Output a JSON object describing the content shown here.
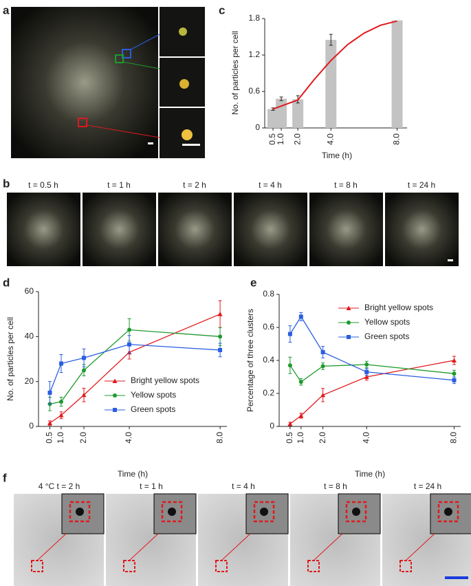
{
  "panels": {
    "labels": [
      "a",
      "b",
      "c",
      "d",
      "e",
      "f"
    ],
    "b_captions": [
      "t = 0.5 h",
      "t = 1 h",
      "t = 2 h",
      "t = 4 h",
      "t = 8 h",
      "t = 24 h"
    ],
    "f_captions": [
      "4 °C  t = 2 h",
      "t = 1 h",
      "t = 4 h",
      "t = 8 h",
      "t = 24 h"
    ]
  },
  "chart_data": [
    {
      "type": "bar",
      "x_label": "Time (h)",
      "y_label": "No. of particles per cell",
      "x": [
        0.5,
        1,
        2,
        4,
        8
      ],
      "values": [
        0.31,
        0.48,
        0.47,
        1.45,
        1.77
      ],
      "errors": [
        0.02,
        0.03,
        0.06,
        0.09,
        0.0
      ],
      "color": "#c3c3c3",
      "fit": {
        "x": [
          0.5,
          1,
          2,
          3,
          4,
          5,
          6,
          7,
          8
        ],
        "values": [
          0.31,
          0.36,
          0.46,
          0.8,
          1.11,
          1.37,
          1.56,
          1.69,
          1.76
        ],
        "color": "#e0191c"
      },
      "xlim": [
        0,
        8.6
      ],
      "ylim": [
        0,
        1.8
      ],
      "xticks": [
        0.5,
        {
          "value": 1,
          "label": "1.0"
        },
        {
          "value": 2,
          "label": "2.0"
        },
        {
          "value": 4,
          "label": "4.0"
        },
        {
          "value": 8,
          "label": "8.0"
        }
      ],
      "yticks": [
        0,
        0.6,
        1.2,
        1.8
      ]
    },
    {
      "type": "line",
      "x_label": "Time (h)",
      "y_label": "No. of particles per cell",
      "x": [
        0.5,
        1,
        2,
        4,
        8
      ],
      "series": [
        {
          "name": "Bright yellow spots",
          "color": "#e0191c",
          "marker": "triangle",
          "values": [
            1.5,
            5,
            14,
            33,
            50
          ],
          "errors": [
            1,
            1.5,
            3,
            3,
            6
          ]
        },
        {
          "name": "Yellow spots",
          "color": "#1e9a2e",
          "marker": "circle",
          "values": [
            10,
            11,
            25,
            43,
            40
          ],
          "errors": [
            3,
            2,
            2.5,
            5,
            4
          ]
        },
        {
          "name": "Green spots",
          "color": "#2a5ee0",
          "marker": "square",
          "values": [
            15,
            28,
            30.5,
            36.5,
            34
          ],
          "errors": [
            5,
            4,
            4,
            4,
            3
          ]
        }
      ],
      "xlim": [
        0,
        8.3
      ],
      "ylim": [
        0,
        60
      ],
      "xticks": [
        0.5,
        {
          "value": 1,
          "label": "1.0"
        },
        {
          "value": 2,
          "label": "2.0"
        },
        {
          "value": 4,
          "label": "4.0"
        },
        {
          "value": 8,
          "label": "8.0"
        }
      ],
      "yticks": [
        0,
        20,
        40,
        60
      ],
      "legend": "lower right"
    },
    {
      "type": "line",
      "x_label": "Time (h)",
      "y_label": "Percentage of three clusters",
      "x": [
        0.5,
        1,
        2,
        4,
        8
      ],
      "series": [
        {
          "name": "Bright yellow spots",
          "color": "#e0191c",
          "marker": "triangle",
          "values": [
            0.015,
            0.065,
            0.19,
            0.3,
            0.4
          ],
          "errors": [
            0.01,
            0.015,
            0.04,
            0.02,
            0.025
          ]
        },
        {
          "name": "Yellow spots",
          "color": "#1e9a2e",
          "marker": "circle",
          "values": [
            0.37,
            0.27,
            0.365,
            0.375,
            0.32
          ],
          "errors": [
            0.05,
            0.02,
            0.02,
            0.02,
            0.02
          ]
        },
        {
          "name": "Green spots",
          "color": "#2a5ee0",
          "marker": "square",
          "values": [
            0.56,
            0.665,
            0.45,
            0.33,
            0.28
          ],
          "errors": [
            0.05,
            0.025,
            0.035,
            0.02,
            0.02
          ]
        }
      ],
      "xlim": [
        0,
        8.3
      ],
      "ylim": [
        0,
        0.8
      ],
      "xticks": [
        0.5,
        {
          "value": 1,
          "label": "1.0"
        },
        {
          "value": 2,
          "label": "2.0"
        },
        {
          "value": 4,
          "label": "4.0"
        },
        {
          "value": 8,
          "label": "8.0"
        }
      ],
      "yticks": [
        0,
        0.2,
        0.4,
        0.6,
        0.8
      ],
      "legend": "upper right"
    }
  ]
}
